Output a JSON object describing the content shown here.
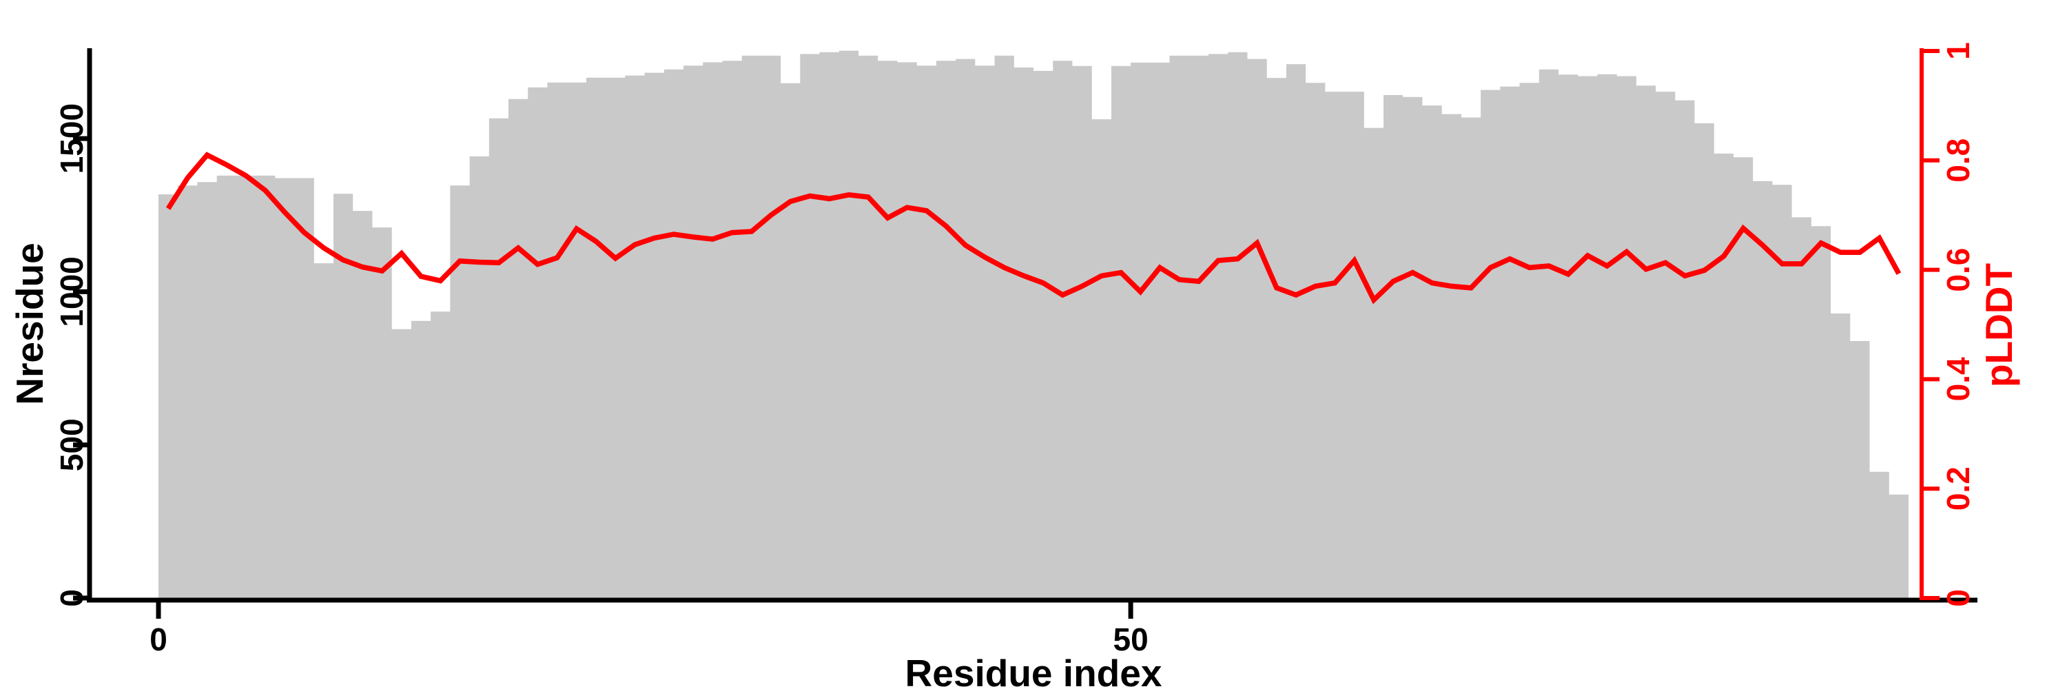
{
  "chart_data": {
    "type": "bar+line",
    "title": "",
    "xlabel": "Residue index",
    "x_axis": {
      "label": "Residue index",
      "ticks": [
        0,
        50
      ],
      "x_start": 0,
      "x_step": 1
    },
    "left_axis": {
      "label": "Nresidue",
      "ticks": [
        0,
        500,
        1000,
        1500
      ],
      "range": [
        0,
        1786
      ],
      "color": "#000000"
    },
    "right_axis": {
      "label": "pLDDT",
      "ticks": [
        0,
        0.2,
        0.4,
        0.6,
        0.8,
        1
      ],
      "range": [
        0,
        1
      ],
      "color": "#ff0000"
    },
    "grid": false,
    "legend": "none",
    "bar_color": "#c9c9c9",
    "line_color": "#ff0000",
    "series": [
      {
        "name": "Nresidue",
        "type": "bar",
        "axis": "left",
        "values": [
          1318,
          1347,
          1358,
          1379,
          1379,
          1379,
          1371,
          1371,
          1093,
          1320,
          1264,
          1210,
          878,
          905,
          935,
          1347,
          1442,
          1566,
          1629,
          1667,
          1683,
          1683,
          1699,
          1699,
          1706,
          1715,
          1726,
          1738,
          1749,
          1754,
          1771,
          1771,
          1681,
          1776,
          1782,
          1787,
          1771,
          1754,
          1749,
          1738,
          1754,
          1760,
          1738,
          1771,
          1732,
          1721,
          1754,
          1737,
          1563,
          1737,
          1748,
          1748,
          1771,
          1771,
          1776,
          1782,
          1760,
          1698,
          1743,
          1682,
          1653,
          1653,
          1535,
          1642,
          1636,
          1608,
          1580,
          1569,
          1659,
          1670,
          1682,
          1726,
          1709,
          1704,
          1710,
          1704,
          1673,
          1653,
          1625,
          1550,
          1451,
          1439,
          1361,
          1349,
          1243,
          1214,
          929,
          839,
          412,
          338
        ]
      },
      {
        "name": "pLDDT",
        "type": "line",
        "axis": "right",
        "values": [
          0.712,
          0.768,
          0.81,
          0.792,
          0.772,
          0.745,
          0.705,
          0.668,
          0.64,
          0.618,
          0.605,
          0.598,
          0.63,
          0.588,
          0.58,
          0.616,
          0.614,
          0.613,
          0.64,
          0.61,
          0.622,
          0.675,
          0.652,
          0.621,
          0.646,
          0.658,
          0.665,
          0.66,
          0.656,
          0.668,
          0.67,
          0.7,
          0.725,
          0.735,
          0.73,
          0.737,
          0.733,
          0.695,
          0.714,
          0.708,
          0.68,
          0.645,
          0.623,
          0.604,
          0.589,
          0.576,
          0.554,
          0.57,
          0.589,
          0.595,
          0.56,
          0.604,
          0.582,
          0.579,
          0.617,
          0.62,
          0.649,
          0.567,
          0.554,
          0.57,
          0.576,
          0.617,
          0.545,
          0.579,
          0.595,
          0.576,
          0.57,
          0.567,
          0.604,
          0.62,
          0.604,
          0.607,
          0.592,
          0.626,
          0.607,
          0.633,
          0.601,
          0.613,
          0.589,
          0.599,
          0.625,
          0.676,
          0.645,
          0.611,
          0.611,
          0.649,
          0.632,
          0.632,
          0.658,
          0.593
        ]
      }
    ]
  }
}
